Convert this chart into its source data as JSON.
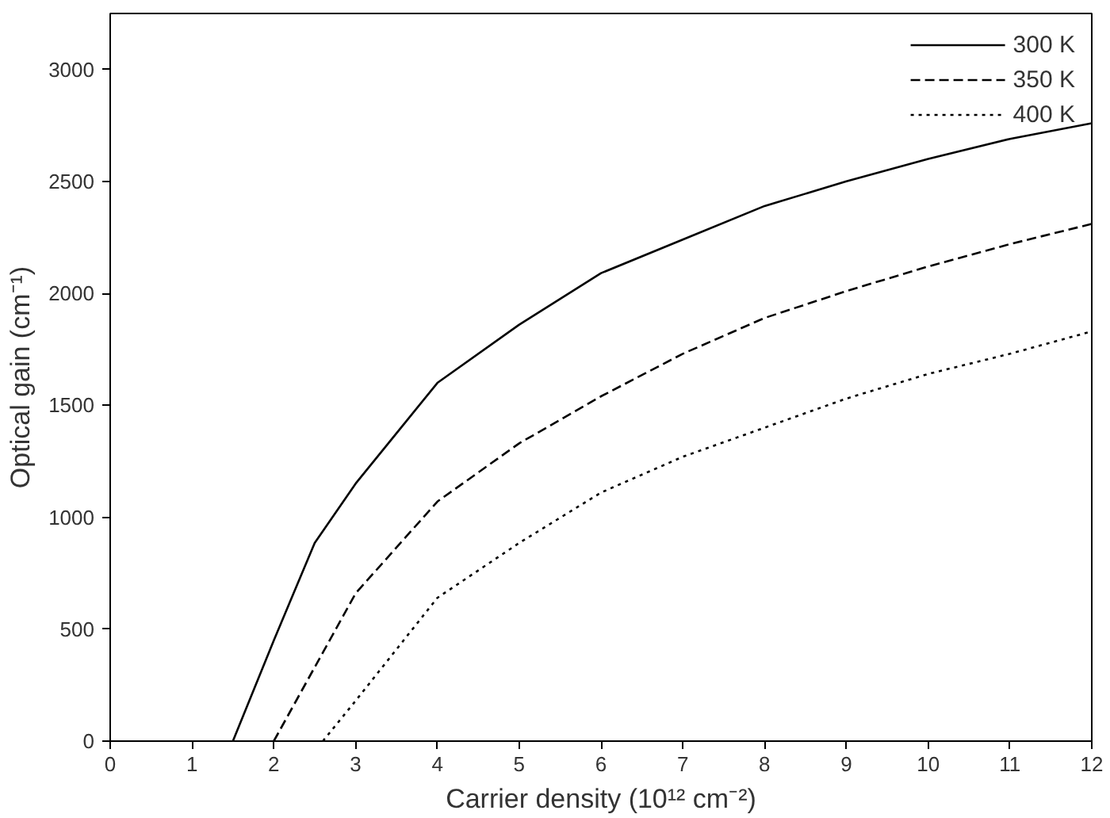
{
  "chart_data": {
    "type": "line",
    "xlabel": "Carrier density (10¹² cm⁻²)",
    "ylabel": "Optical gain (cm⁻¹)",
    "xlim": [
      0,
      12
    ],
    "ylim": [
      0,
      3250
    ],
    "xticks": [
      0,
      1,
      2,
      3,
      4,
      5,
      6,
      7,
      8,
      9,
      10,
      11,
      12
    ],
    "yticks": [
      0,
      500,
      1000,
      1500,
      2000,
      2500,
      3000
    ],
    "grid": false,
    "legend": "top right",
    "marker": "none",
    "series": [
      {
        "name": "300 K",
        "color": "#000000",
        "line_style": "solid",
        "x": [
          1.5,
          2,
          2.5,
          3,
          4,
          5,
          6,
          7,
          8,
          9,
          10,
          11,
          12
        ],
        "values": [
          0,
          450,
          885,
          1150,
          1600,
          1860,
          2090,
          2240,
          2390,
          2500,
          2600,
          2690,
          2760
        ]
      },
      {
        "name": "350 K",
        "color": "#000000",
        "line_style": "dashed",
        "x": [
          2,
          2.5,
          3,
          4,
          5,
          6,
          7,
          8,
          9,
          10,
          11,
          12
        ],
        "values": [
          0,
          330,
          660,
          1070,
          1330,
          1540,
          1730,
          1890,
          2010,
          2120,
          2220,
          2310
        ]
      },
      {
        "name": "400 K",
        "color": "#000000",
        "line_style": "dotted",
        "x": [
          2.6,
          3,
          4,
          5,
          6,
          7,
          8,
          9,
          10,
          11,
          12
        ],
        "values": [
          0,
          180,
          640,
          885,
          1110,
          1270,
          1400,
          1530,
          1640,
          1730,
          1830
        ]
      }
    ]
  }
}
